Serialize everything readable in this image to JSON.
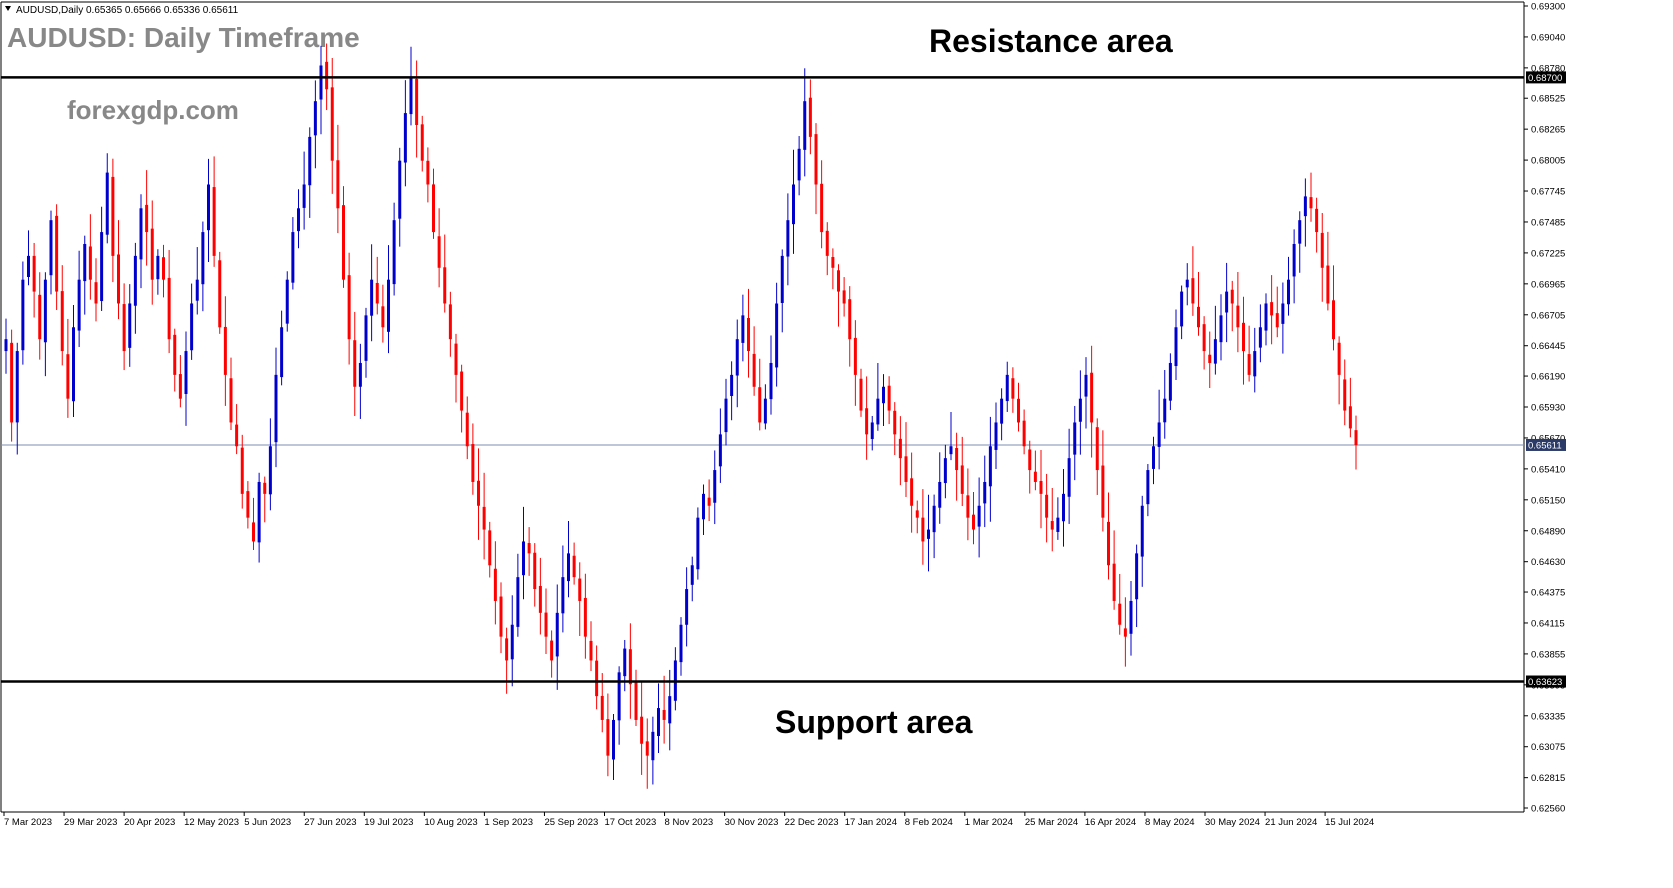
{
  "header": {
    "symbol": "AUDUSD,Daily",
    "ohlc": "0.65365 0.65666 0.65336 0.65611"
  },
  "watermark": {
    "title": "AUDUSD: Daily Timeframe",
    "site": "forexgdp.com"
  },
  "annotations": {
    "resistance_label": "Resistance area",
    "support_label": "Support area"
  },
  "colors": {
    "bull": "#0000cc",
    "bear": "#ff0000",
    "level_line": "#000000",
    "current_line": "#7d8fb0",
    "tag_dark": "#000000",
    "tag_current": "#2b3a67"
  },
  "chart_data": {
    "type": "candlestick",
    "y_ticks": [
      "0.69300",
      "0.69040",
      "0.68780",
      "0.68525",
      "0.68265",
      "0.68005",
      "0.67745",
      "0.67485",
      "0.67225",
      "0.66965",
      "0.66705",
      "0.66445",
      "0.66190",
      "0.65930",
      "0.65670",
      "0.65410",
      "0.65150",
      "0.64890",
      "0.64630",
      "0.64375",
      "0.64115",
      "0.63855",
      "0.63595",
      "0.63335",
      "0.63075",
      "0.62815",
      "0.62560"
    ],
    "ylim": [
      0.6256,
      0.693
    ],
    "x_labels": [
      "7 Mar 2023",
      "29 Mar 2023",
      "20 Apr 2023",
      "12 May 2023",
      "5 Jun 2023",
      "27 Jun 2023",
      "19 Jul 2023",
      "10 Aug 2023",
      "1 Sep 2023",
      "25 Sep 2023",
      "17 Oct 2023",
      "8 Nov 2023",
      "30 Nov 2023",
      "22 Dec 2023",
      "17 Jan 2024",
      "8 Feb 2024",
      "1 Mar 2024",
      "25 Mar 2024",
      "16 Apr 2024",
      "8 May 2024",
      "30 May 2024",
      "21 Jun 2024",
      "15 Jul 2024"
    ],
    "levels": [
      {
        "name": "Resistance area",
        "value": 0.687,
        "tag": "0.68700"
      },
      {
        "name": "Support area",
        "value": 0.63623,
        "tag": "0.63623"
      }
    ],
    "current_price": {
      "value": 0.65611,
      "tag": "0.65611"
    },
    "closes": [
      0.665,
      0.658,
      0.664,
      0.67,
      0.672,
      0.669,
      0.665,
      0.67,
      0.675,
      0.669,
      0.664,
      0.66,
      0.666,
      0.67,
      0.673,
      0.67,
      0.668,
      0.674,
      0.679,
      0.672,
      0.668,
      0.664,
      0.668,
      0.672,
      0.676,
      0.674,
      0.67,
      0.672,
      0.67,
      0.665,
      0.662,
      0.66,
      0.664,
      0.668,
      0.67,
      0.674,
      0.678,
      0.672,
      0.666,
      0.662,
      0.658,
      0.656,
      0.652,
      0.65,
      0.648,
      0.653,
      0.652,
      0.656,
      0.662,
      0.666,
      0.67,
      0.674,
      0.676,
      0.678,
      0.682,
      0.685,
      0.688,
      0.686,
      0.68,
      0.676,
      0.67,
      0.665,
      0.661,
      0.663,
      0.667,
      0.67,
      0.668,
      0.666,
      0.67,
      0.675,
      0.68,
      0.684,
      0.687,
      0.683,
      0.68,
      0.678,
      0.674,
      0.671,
      0.668,
      0.665,
      0.662,
      0.659,
      0.656,
      0.653,
      0.651,
      0.649,
      0.646,
      0.643,
      0.64,
      0.638,
      0.641,
      0.645,
      0.648,
      0.647,
      0.644,
      0.642,
      0.64,
      0.638,
      0.642,
      0.645,
      0.647,
      0.645,
      0.643,
      0.64,
      0.638,
      0.635,
      0.633,
      0.63,
      0.633,
      0.637,
      0.639,
      0.636,
      0.633,
      0.631,
      0.63,
      0.632,
      0.634,
      0.633,
      0.635,
      0.638,
      0.641,
      0.644,
      0.646,
      0.65,
      0.652,
      0.651,
      0.654,
      0.657,
      0.66,
      0.662,
      0.665,
      0.667,
      0.664,
      0.661,
      0.658,
      0.66,
      0.663,
      0.668,
      0.672,
      0.675,
      0.678,
      0.681,
      0.685,
      0.682,
      0.678,
      0.674,
      0.672,
      0.671,
      0.669,
      0.668,
      0.665,
      0.662,
      0.659,
      0.657,
      0.658,
      0.66,
      0.661,
      0.659,
      0.657,
      0.655,
      0.653,
      0.651,
      0.65,
      0.648,
      0.649,
      0.651,
      0.653,
      0.655,
      0.656,
      0.654,
      0.652,
      0.65,
      0.649,
      0.651,
      0.653,
      0.656,
      0.658,
      0.66,
      0.662,
      0.66,
      0.658,
      0.656,
      0.654,
      0.653,
      0.652,
      0.65,
      0.649,
      0.65,
      0.652,
      0.655,
      0.658,
      0.66,
      0.662,
      0.658,
      0.654,
      0.65,
      0.646,
      0.643,
      0.641,
      0.64,
      0.643,
      0.647,
      0.651,
      0.654,
      0.656,
      0.658,
      0.66,
      0.663,
      0.666,
      0.669,
      0.67,
      0.668,
      0.666,
      0.664,
      0.663,
      0.665,
      0.667,
      0.669,
      0.668,
      0.666,
      0.664,
      0.662,
      0.664,
      0.666,
      0.668,
      0.667,
      0.666,
      0.668,
      0.67,
      0.673,
      0.675,
      0.677,
      0.676,
      0.674,
      0.671,
      0.668,
      0.665,
      0.662,
      0.659,
      0.6575,
      0.6561
    ]
  }
}
